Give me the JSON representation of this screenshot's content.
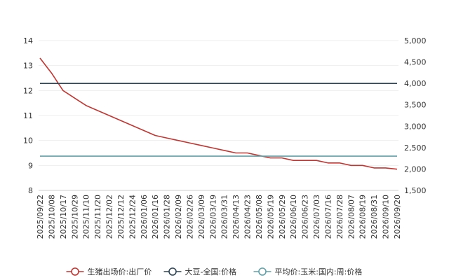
{
  "chart_data": {
    "type": "line",
    "grid": true,
    "legend_position": "bottom",
    "x_ticks": [
      "2025/09/22",
      "2025/10/08",
      "2025/10/17",
      "2025/10/29",
      "2025/11/10",
      "2025/11/20",
      "2025/12/02",
      "2025/12/12",
      "2025/12/24",
      "2026/01/06",
      "2026/01/16",
      "2026/01/28",
      "2026/02/09",
      "2026/02/26",
      "2026/03/09",
      "2026/03/19",
      "2026/03/31",
      "2026/04/13",
      "2026/04/23",
      "2026/05/08",
      "2026/05/19",
      "2026/05/29",
      "2026/06/10",
      "2026/06/23",
      "2026/07/03",
      "2026/07/16",
      "2026/07/28",
      "2026/08/07",
      "2026/08/19",
      "2026/08/31",
      "2026/09/10",
      "2026/09/20"
    ],
    "y_left": {
      "ylim": [
        8,
        14
      ],
      "ticks": [
        "8",
        "9",
        "10",
        "11",
        "12",
        "13",
        "14"
      ]
    },
    "y_right": {
      "ylim": [
        1500,
        5000
      ],
      "ticks": [
        "1,500",
        "2,000",
        "2,500",
        "3,000",
        "3,500",
        "4,000",
        "4,500",
        "5,000"
      ]
    },
    "series": [
      {
        "name": "生猪出场价:出厂价",
        "axis": "left",
        "color": "#c23531",
        "values": [
          13.3,
          12.7,
          12.0,
          11.7,
          11.4,
          11.2,
          11.0,
          10.8,
          10.6,
          10.4,
          10.2,
          10.1,
          10.0,
          9.9,
          9.8,
          9.7,
          9.6,
          9.5,
          9.5,
          9.4,
          9.3,
          9.3,
          9.2,
          9.2,
          9.2,
          9.1,
          9.1,
          9.0,
          9.0,
          8.9,
          8.9,
          8.85
        ]
      },
      {
        "name": "大豆-全国:价格",
        "axis": "right",
        "color": "#2f4554",
        "values": [
          4000,
          4000,
          4000,
          4000,
          4000,
          4000,
          4000,
          4000,
          4000,
          4000,
          4000,
          4000,
          4000,
          4000,
          4000,
          4000,
          4000,
          4000,
          4000,
          4000,
          4000,
          4000,
          4000,
          4000,
          4000,
          4000,
          4000,
          4000,
          4000,
          4000,
          4000,
          4000
        ]
      },
      {
        "name": "平均价:玉米:国内:周:价格",
        "axis": "right",
        "color": "#61a0a8",
        "values": [
          2300,
          2300,
          2300,
          2300,
          2300,
          2300,
          2300,
          2300,
          2300,
          2300,
          2300,
          2300,
          2300,
          2300,
          2300,
          2300,
          2300,
          2300,
          2300,
          2300,
          2300,
          2300,
          2300,
          2300,
          2300,
          2300,
          2300,
          2300,
          2300,
          2300,
          2300,
          2300
        ]
      }
    ]
  }
}
